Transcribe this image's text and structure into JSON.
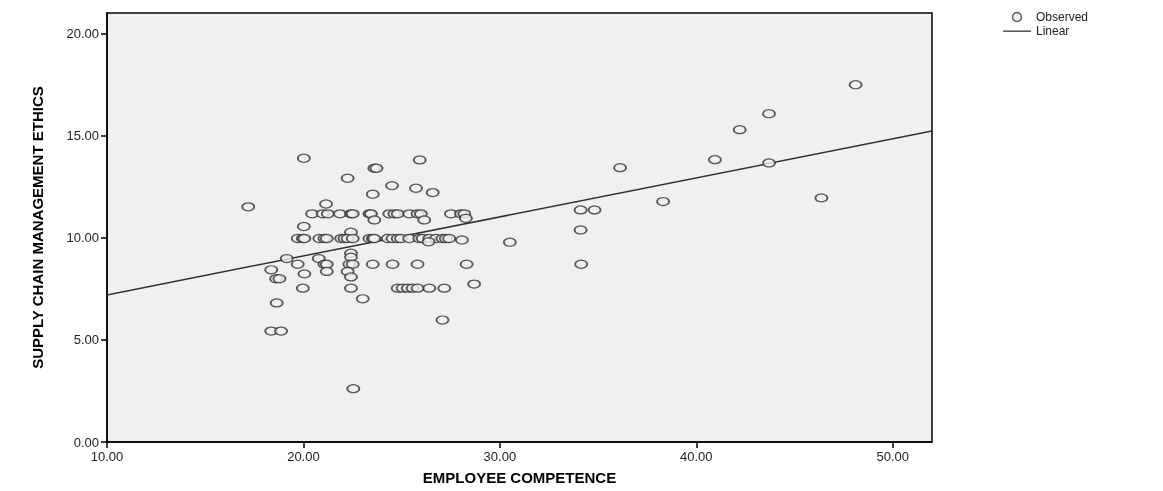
{
  "chart_data": {
    "type": "scatter",
    "xlabel": "EMPLOYEE COMPETENCE",
    "ylabel": "SUPPLY CHAIN MANAGEMENT ETHICS",
    "xlim": [
      10,
      52
    ],
    "ylim": [
      0,
      21
    ],
    "xticks": [
      {
        "value": 10,
        "label": "10.00"
      },
      {
        "value": 20,
        "label": "20.00"
      },
      {
        "value": 30,
        "label": "30.00"
      },
      {
        "value": 40,
        "label": "40.00"
      },
      {
        "value": 50,
        "label": "50.00"
      }
    ],
    "yticks": [
      {
        "value": 0,
        "label": "0.00"
      },
      {
        "value": 5,
        "label": "5.00"
      },
      {
        "value": 10,
        "label": "10.00"
      },
      {
        "value": 15,
        "label": "15.00"
      },
      {
        "value": 20,
        "label": "20.00"
      }
    ],
    "grid": false,
    "legend": "top right",
    "series": [
      {
        "name": "Observed",
        "marker": "circle",
        "color": "#333333",
        "x": [
          17.19,
          20.02,
          25.92,
          23.61,
          23.72,
          22.25,
          24.51,
          25.73,
          26.58,
          23.53,
          21.15,
          20.44,
          20.98,
          21.24,
          21.86,
          22.42,
          22.51,
          23.36,
          23.44,
          24.37,
          24.63,
          24.8,
          25.39,
          25.81,
          25.98,
          27.51,
          28.02,
          28.19,
          23.61,
          26.15,
          28.27,
          20.02,
          22.42,
          19.71,
          19.97,
          20.05,
          20.81,
          21.07,
          21.19,
          21.92,
          22.09,
          22.25,
          22.51,
          23.36,
          23.53,
          23.61,
          24.29,
          24.54,
          24.8,
          24.97,
          25.39,
          25.9,
          26.07,
          26.41,
          26.75,
          27.08,
          27.25,
          27.42,
          28.07,
          26.37,
          30.51,
          19.15,
          20.78,
          22.42,
          22.42,
          19.71,
          21.07,
          21.19,
          22.34,
          22.51,
          23.53,
          24.54,
          25.81,
          28.31,
          18.36,
          20.05,
          21.19,
          22.25,
          22.42,
          18.61,
          18.78,
          19.97,
          22.42,
          24.8,
          25.05,
          25.31,
          25.56,
          25.81,
          26.41,
          27.17,
          28.69,
          23.02,
          18.64,
          27.08,
          18.36,
          18.86,
          22.54,
          48.11,
          43.7,
          42.21,
          40.95,
          43.7,
          36.12,
          46.37,
          38.31,
          34.11,
          34.82,
          34.11,
          34.14
        ],
        "values": [
          11.51,
          13.89,
          13.81,
          13.4,
          13.4,
          12.91,
          12.55,
          12.42,
          12.21,
          12.13,
          11.65,
          11.17,
          11.17,
          11.17,
          11.17,
          11.17,
          11.17,
          11.17,
          11.17,
          11.17,
          11.17,
          11.17,
          11.17,
          11.17,
          11.17,
          11.17,
          11.17,
          11.17,
          10.87,
          10.87,
          10.95,
          10.55,
          10.27,
          9.96,
          9.96,
          9.96,
          9.96,
          9.96,
          9.96,
          9.96,
          9.96,
          9.96,
          9.96,
          9.96,
          9.96,
          9.96,
          9.96,
          9.96,
          9.96,
          9.96,
          9.96,
          9.96,
          9.96,
          9.96,
          9.96,
          9.96,
          9.96,
          9.96,
          9.89,
          9.8,
          9.78,
          8.98,
          8.98,
          9.24,
          9.05,
          8.7,
          8.7,
          8.7,
          8.7,
          8.7,
          8.7,
          8.7,
          8.7,
          8.7,
          8.43,
          8.23,
          8.35,
          8.35,
          8.08,
          7.99,
          7.99,
          7.53,
          7.53,
          7.53,
          7.53,
          7.53,
          7.53,
          7.53,
          7.53,
          7.53,
          7.73,
          7.01,
          6.81,
          5.97,
          5.43,
          5.43,
          2.61,
          17.49,
          16.07,
          15.29,
          13.82,
          13.66,
          13.43,
          11.95,
          11.77,
          11.36,
          11.36,
          10.38,
          8.7
        ]
      },
      {
        "name": "Linear",
        "type": "line",
        "marker": "none",
        "line_style": "solid",
        "color": "#333333",
        "x": [
          10,
          52
        ],
        "values": [
          7.2,
          15.22
        ]
      }
    ]
  }
}
